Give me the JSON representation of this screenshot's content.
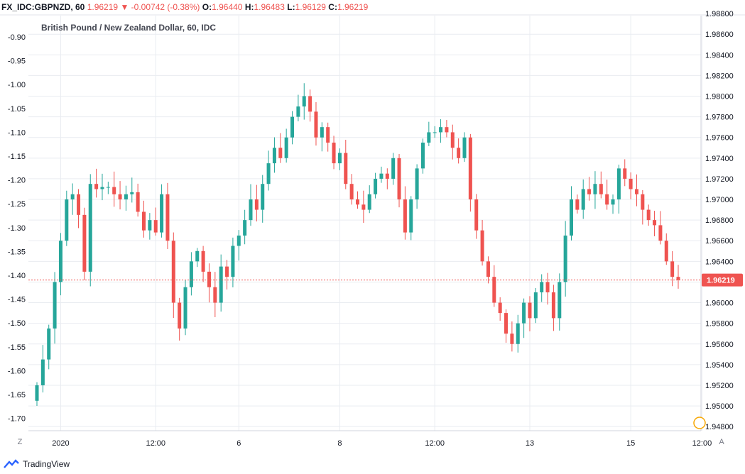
{
  "header": {
    "symbol": "FX_IDC:GBPNZD, 60",
    "last": "1.96219",
    "change": "-0.00742 (-0.38%)",
    "open_label": "O:",
    "open": "1.96440",
    "high_label": "H:",
    "high": "1.96483",
    "low_label": "L:",
    "low": "1.96129",
    "close_label": "C:",
    "close": "1.96219",
    "change_color": "#ef5350"
  },
  "footer": {
    "brand": "TradingView",
    "left_button": "Z",
    "right_button": "A"
  },
  "chart_data": {
    "type": "candlestick",
    "title": "British Pound / New Zealand Dollar, 60, IDC",
    "right_axis": {
      "label_scale": "price",
      "ylim": [
        1.9476,
        1.9878
      ],
      "ticks": [
        "1.98600",
        "1.98400",
        "1.98200",
        "1.98000",
        "1.97800",
        "1.97600",
        "1.97400",
        "1.97200",
        "1.97000",
        "1.96800",
        "1.96600",
        "1.96400",
        "1.96200",
        "1.96000",
        "1.95800",
        "1.95600",
        "1.95400",
        "1.95200",
        "1.95000",
        "1.94800"
      ],
      "tick_values": [
        1.986,
        1.984,
        1.982,
        1.98,
        1.978,
        1.976,
        1.974,
        1.972,
        1.97,
        1.968,
        1.966,
        1.964,
        1.962,
        1.96,
        1.958,
        1.956,
        1.954,
        1.952,
        1.95,
        1.948
      ],
      "top_partial": "1.98800",
      "current_price_label": "1.96219",
      "current_price": 1.96219
    },
    "left_axis": {
      "label_scale": "percent change",
      "ticks": [
        "-0.90",
        "-0.95",
        "-1.00",
        "-1.05",
        "-1.10",
        "-1.15",
        "-1.20",
        "-1.25",
        "-1.30",
        "-1.35",
        "-1.40",
        "-1.45",
        "-1.50",
        "-1.55",
        "-1.60",
        "-1.65",
        "-1.70"
      ],
      "tick_values": [
        -0.9,
        -0.95,
        -1.0,
        -1.05,
        -1.1,
        -1.15,
        -1.2,
        -1.25,
        -1.3,
        -1.35,
        -1.4,
        -1.45,
        -1.5,
        -1.55,
        -1.6,
        -1.65,
        -1.7
      ]
    },
    "x_axis": {
      "labels": [
        "2020",
        "12:00",
        "6",
        "8",
        "12:00",
        "13",
        "15",
        "12:00"
      ],
      "label_bar_index": [
        4,
        20,
        34,
        51,
        67,
        83,
        100,
        112
      ]
    },
    "colors": {
      "up": "#26a69a",
      "down": "#ef5350",
      "grid": "#e9ecf1",
      "price_line": "#ef5350"
    },
    "grid": true,
    "series_close": [
      1.952,
      1.9545,
      1.9575,
      1.962,
      1.966,
      1.97,
      1.9705,
      1.9685,
      1.963,
      1.9715,
      1.971,
      1.9712,
      1.9712,
      1.9705,
      1.97,
      1.9705,
      1.9707,
      1.9688,
      1.967,
      1.968,
      1.9668,
      1.9705,
      1.966,
      1.96,
      1.9575,
      1.9615,
      1.964,
      1.965,
      1.963,
      1.9615,
      1.96,
      1.9635,
      1.9625,
      1.9655,
      1.9665,
      1.968,
      1.97,
      1.969,
      1.9715,
      1.9735,
      1.975,
      1.974,
      1.976,
      1.978,
      1.979,
      1.98,
      1.9785,
      1.976,
      1.977,
      1.9755,
      1.9735,
      1.9745,
      1.9715,
      1.97,
      1.9695,
      1.969,
      1.9705,
      1.972,
      1.9725,
      1.972,
      1.974,
      1.97,
      1.9668,
      1.97,
      1.973,
      1.9755,
      1.9765,
      1.9765,
      1.977,
      1.9765,
      1.975,
      1.974,
      1.976,
      1.97,
      1.967,
      1.964,
      1.9625,
      1.96,
      1.959,
      1.957,
      1.956,
      1.958,
      1.96,
      1.9585,
      1.961,
      1.962,
      1.961,
      1.9585,
      1.962,
      1.9665,
      1.97,
      1.969,
      1.971,
      1.9705,
      1.9715,
      1.9705,
      1.9695,
      1.97,
      1.973,
      1.972,
      1.971,
      1.9705,
      1.969,
      1.968,
      1.9675,
      1.966,
      1.964,
      1.9625,
      1.9622
    ]
  }
}
